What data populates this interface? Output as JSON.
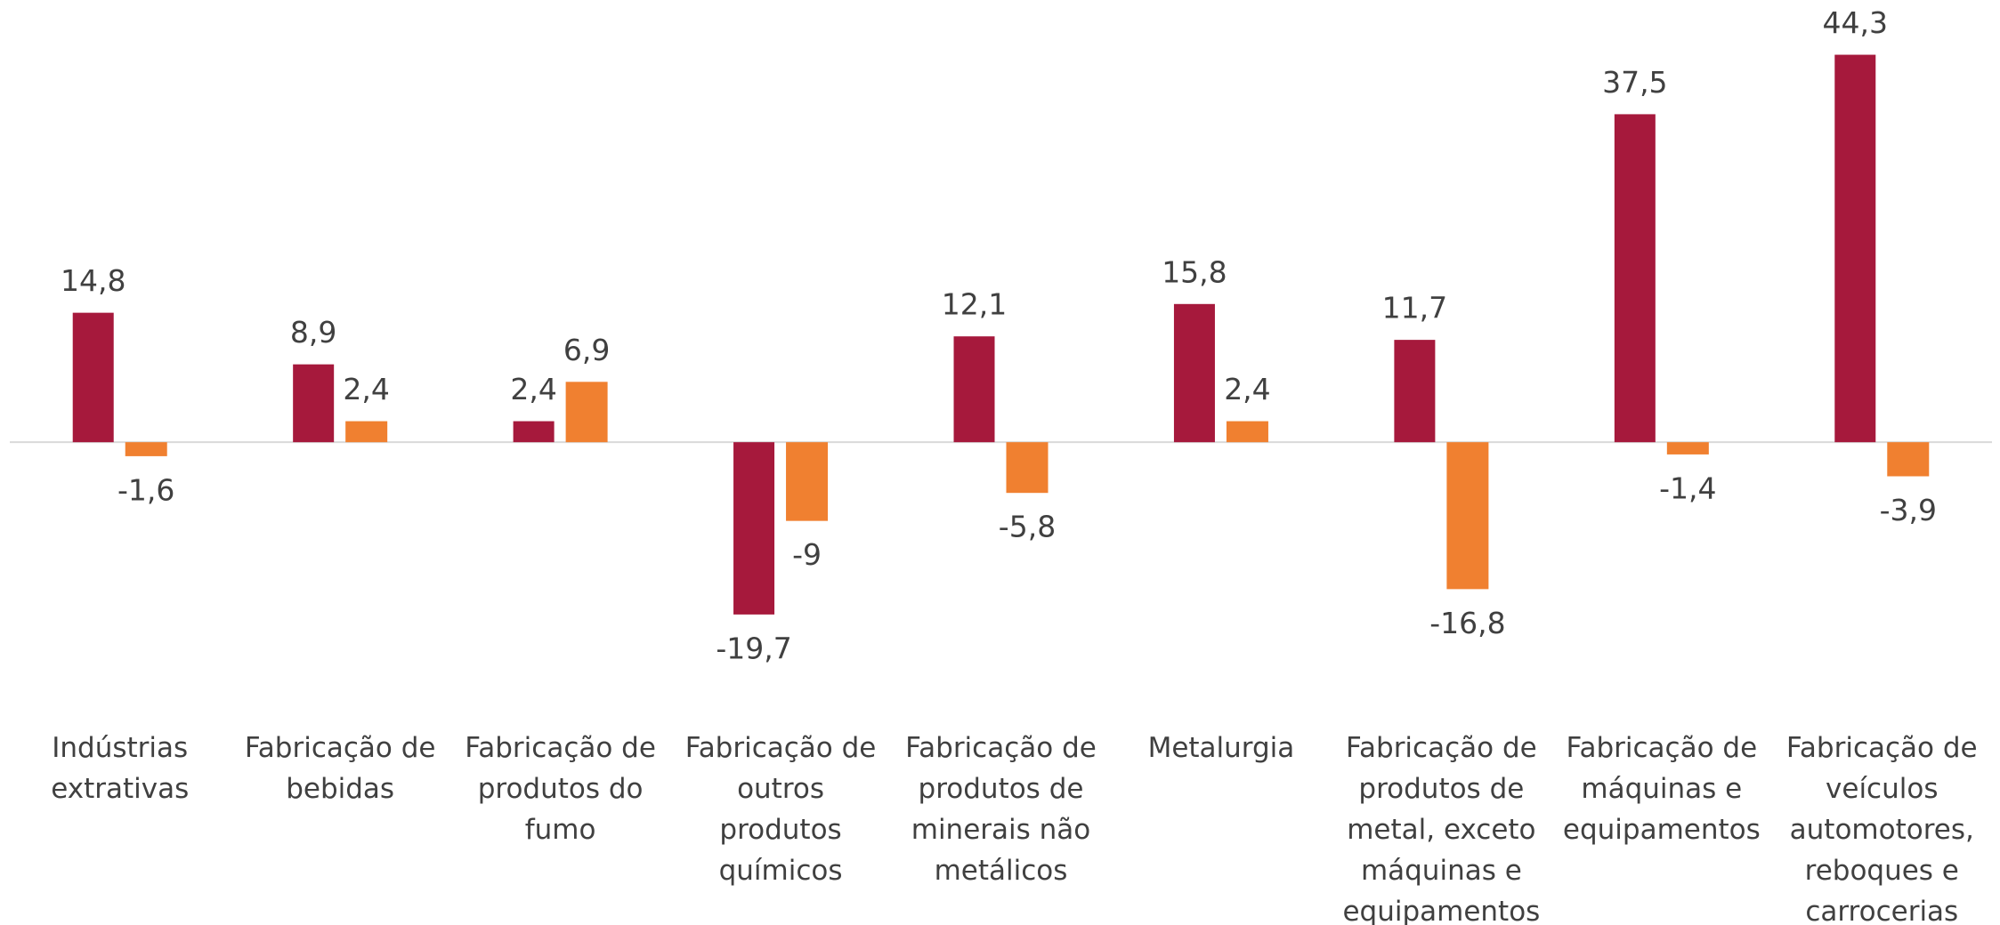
{
  "chart_data": {
    "type": "bar",
    "categories": [
      "Indústrias extrativas",
      "Fabricação de bebidas",
      "Fabricação de produtos do fumo",
      "Fabricação de outros produtos químicos",
      "Fabricação de produtos de minerais não metálicos",
      "Metalurgia",
      "Fabricação de produtos de metal, exceto máquinas e equipamentos",
      "Fabricação de máquinas e equipamentos",
      "Fabricação de veículos automotores, reboques e carrocerias"
    ],
    "series": [
      {
        "color": "#a6193c",
        "values": [
          14.8,
          8.9,
          2.4,
          -19.7,
          12.1,
          15.8,
          11.7,
          37.5,
          44.3
        ],
        "value_labels": [
          "14,8",
          "8,9",
          "2,4",
          "-19,7",
          "12,1",
          "15,8",
          "11,7",
          "37,5",
          "44,3"
        ]
      },
      {
        "color": "#f08030",
        "values": [
          -1.6,
          2.4,
          6.9,
          -9,
          -5.8,
          2.4,
          -16.8,
          -1.4,
          -3.9
        ],
        "value_labels": [
          "-1,6",
          "2,4",
          "6,9",
          "-9",
          "-5,8",
          "2,4",
          "-16,8",
          "-1,4",
          "-3,9"
        ]
      }
    ],
    "ylim": [
      -25,
      50
    ]
  }
}
